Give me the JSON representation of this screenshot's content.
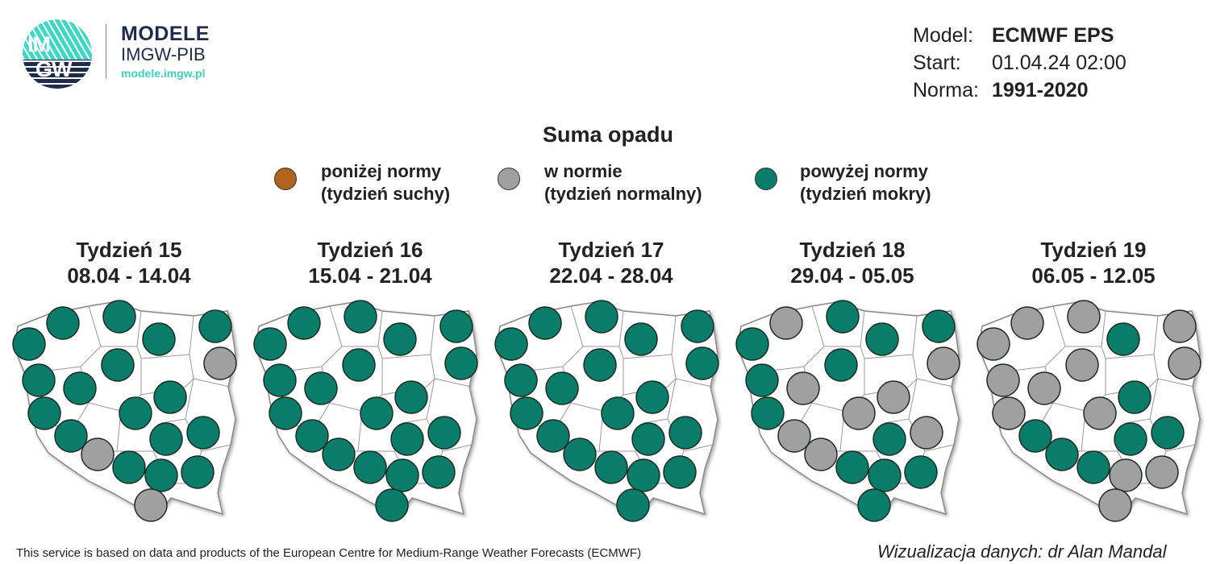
{
  "logo": {
    "mark_text_top": "IM",
    "mark_text_bottom": "GW",
    "title": "MODELE",
    "subtitle": "IMGW-PIB",
    "url": "modele.imgw.pl"
  },
  "meta": {
    "model_label": "Model:",
    "model_value": "ECMWF EPS",
    "start_label": "Start:",
    "start_value": "01.04.24 02:00",
    "norm_label": "Norma:",
    "norm_value": "1991-2020"
  },
  "title": "Suma opadu",
  "legend": [
    {
      "key": "below",
      "line1": "poniżej normy",
      "line2": "(tydzień suchy)",
      "color": "#b0631c"
    },
    {
      "key": "normal",
      "line1": "w normie",
      "line2": "(tydzień normalny)",
      "color": "#a0a0a0"
    },
    {
      "key": "above",
      "line1": "powyżej normy",
      "line2": "(tydzień mokry)",
      "color": "#0a7d6a"
    }
  ],
  "weeks": [
    {
      "title": "Tydzień 15",
      "range": "08.04 - 14.04",
      "stations": [
        "above",
        "above",
        "above",
        "above",
        "above",
        "normal",
        "above",
        "above",
        "above",
        "above",
        "above",
        "above",
        "above",
        "above",
        "above",
        "normal",
        "above",
        "above",
        "above",
        "normal"
      ]
    },
    {
      "title": "Tydzień 16",
      "range": "15.04 - 21.04",
      "stations": [
        "above",
        "above",
        "above",
        "above",
        "above",
        "above",
        "above",
        "above",
        "above",
        "above",
        "above",
        "above",
        "above",
        "above",
        "above",
        "above",
        "above",
        "above",
        "above",
        "above"
      ]
    },
    {
      "title": "Tydzień 17",
      "range": "22.04 - 28.04",
      "stations": [
        "above",
        "above",
        "above",
        "above",
        "above",
        "above",
        "above",
        "above",
        "above",
        "above",
        "above",
        "above",
        "above",
        "above",
        "above",
        "above",
        "above",
        "above",
        "above",
        "above"
      ]
    },
    {
      "title": "Tydzień 18",
      "range": "29.04 - 05.05",
      "stations": [
        "above",
        "normal",
        "above",
        "above",
        "above",
        "normal",
        "above",
        "above",
        "normal",
        "normal",
        "above",
        "normal",
        "normal",
        "above",
        "normal",
        "normal",
        "above",
        "above",
        "above",
        "above"
      ]
    },
    {
      "title": "Tydzień 19",
      "range": "06.05 - 12.05",
      "stations": [
        "normal",
        "normal",
        "normal",
        "above",
        "normal",
        "normal",
        "normal",
        "normal",
        "normal",
        "above",
        "normal",
        "normal",
        "above",
        "above",
        "above",
        "above",
        "above",
        "normal",
        "normal",
        "normal"
      ]
    }
  ],
  "footer": {
    "source": "This service is based on data and products of the European Centre for Medium-Range Weather Forecasts (ECMWF)",
    "credit": "Wizualizacja danych: dr Alan Mandal"
  }
}
